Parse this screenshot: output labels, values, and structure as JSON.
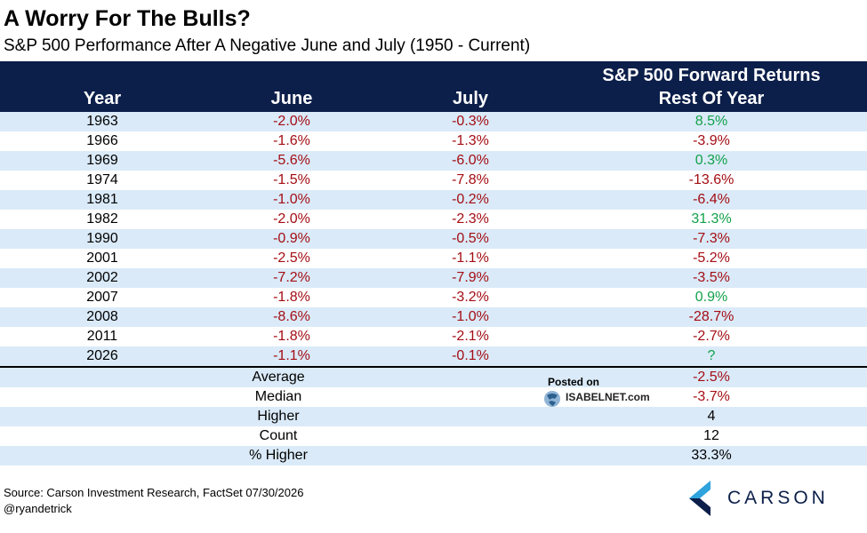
{
  "title": "A Worry For The Bulls?",
  "subtitle": "S&P 500 Performance After A Negative June and July (1950 - Current)",
  "columns": {
    "year": "Year",
    "june": "June",
    "july": "July",
    "forward_line1": "S&P 500 Forward Returns",
    "forward_line2": "Rest Of Year"
  },
  "rows": [
    {
      "year": "1963",
      "june": "-2.0%",
      "july": "-0.3%",
      "rest": "8.5%"
    },
    {
      "year": "1966",
      "june": "-1.6%",
      "july": "-1.3%",
      "rest": "-3.9%"
    },
    {
      "year": "1969",
      "june": "-5.6%",
      "july": "-6.0%",
      "rest": "0.3%"
    },
    {
      "year": "1974",
      "june": "-1.5%",
      "july": "-7.8%",
      "rest": "-13.6%"
    },
    {
      "year": "1981",
      "june": "-1.0%",
      "july": "-0.2%",
      "rest": "-6.4%"
    },
    {
      "year": "1982",
      "june": "-2.0%",
      "july": "-2.3%",
      "rest": "31.3%"
    },
    {
      "year": "1990",
      "june": "-0.9%",
      "july": "-0.5%",
      "rest": "-7.3%"
    },
    {
      "year": "2001",
      "june": "-2.5%",
      "july": "-1.1%",
      "rest": "-5.2%"
    },
    {
      "year": "2002",
      "june": "-7.2%",
      "july": "-7.9%",
      "rest": "-3.5%"
    },
    {
      "year": "2007",
      "june": "-1.8%",
      "july": "-3.2%",
      "rest": "0.9%"
    },
    {
      "year": "2008",
      "june": "-8.6%",
      "july": "-1.0%",
      "rest": "-28.7%"
    },
    {
      "year": "2011",
      "june": "-1.8%",
      "july": "-2.1%",
      "rest": "-2.7%"
    },
    {
      "year": "2026",
      "june": "-1.1%",
      "july": "-0.1%",
      "rest": "?"
    }
  ],
  "summary": [
    {
      "label": "Average",
      "value": "-2.5%"
    },
    {
      "label": "Median",
      "value": "-3.7%"
    },
    {
      "label": "Higher",
      "value": "4"
    },
    {
      "label": "Count",
      "value": "12"
    },
    {
      "label": "% Higher",
      "value": "33.3%"
    }
  ],
  "watermark": {
    "posted_on": "Posted on",
    "site": "ISABELNET.com"
  },
  "footer": {
    "source": "Source: Carson Investment Research, FactSet 07/30/2026",
    "handle": "@ryandetrick"
  },
  "logo": {
    "brand": "CARSON"
  },
  "colors": {
    "header_bg": "#0c1f4a",
    "stripe": "#daeaf8",
    "negative": "#a40d14",
    "positive": "#12a14a",
    "logo_light": "#2ea3dc",
    "logo_dark": "#0c1f4a"
  }
}
